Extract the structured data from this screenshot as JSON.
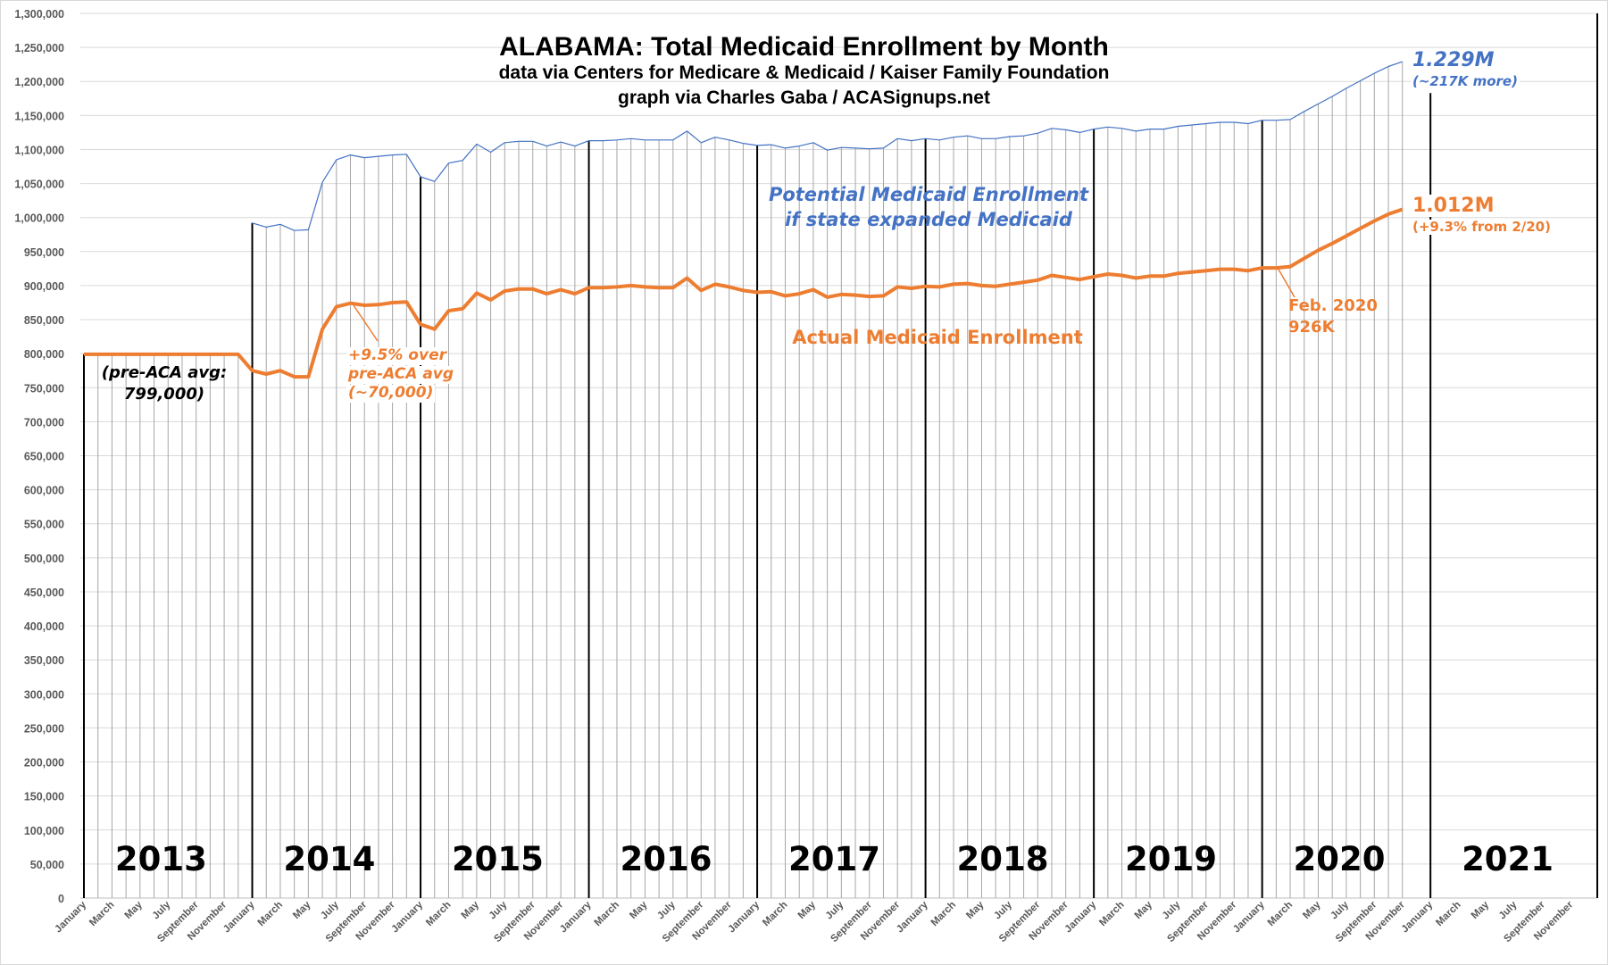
{
  "chart_data": {
    "type": "line",
    "title": "ALABAMA: Total Medicaid Enrollment by Month",
    "subtitle": [
      "data via Centers for Medicare & Medicaid / Kaiser Family Foundation",
      "graph via Charles Gaba / ACASignups.net"
    ],
    "xlabel": "",
    "ylabel": "",
    "x_start": "2013-01",
    "x_end": "2021-12",
    "ylim": [
      0,
      1300000
    ],
    "y_ticks": [
      0,
      50000,
      100000,
      150000,
      200000,
      250000,
      300000,
      350000,
      400000,
      450000,
      500000,
      550000,
      600000,
      650000,
      700000,
      750000,
      800000,
      850000,
      900000,
      950000,
      1000000,
      1050000,
      1100000,
      1150000,
      1200000,
      1250000,
      1300000
    ],
    "y_tick_labels": [
      "0",
      "50,000",
      "100,000",
      "150,000",
      "200,000",
      "250,000",
      "300,000",
      "350,000",
      "400,000",
      "450,000",
      "500,000",
      "550,000",
      "600,000",
      "650,000",
      "700,000",
      "750,000",
      "800,000",
      "850,000",
      "900,000",
      "950,000",
      "1,000,000",
      "1,050,000",
      "1,100,000",
      "1,150,000",
      "1,200,000",
      "1,250,000",
      "1,300,000"
    ],
    "x_tick_month_labels": [
      "January",
      "March",
      "May",
      "July",
      "September",
      "November"
    ],
    "year_labels": [
      "2013",
      "2014",
      "2015",
      "2016",
      "2017",
      "2018",
      "2019",
      "2020",
      "2021"
    ],
    "grid": true,
    "series": [
      {
        "key": "actual",
        "color": "#ed7d31",
        "values": [
          799000,
          799000,
          799000,
          799000,
          799000,
          799000,
          799000,
          799000,
          799000,
          799000,
          799000,
          799000,
          775000,
          770000,
          775000,
          766000,
          766000,
          836000,
          869000,
          874000,
          871000,
          872000,
          875000,
          876000,
          843000,
          836000,
          863000,
          866000,
          889000,
          879000,
          892000,
          895000,
          895000,
          888000,
          894000,
          888000,
          897000,
          897000,
          898000,
          900000,
          898000,
          897000,
          897000,
          911000,
          893000,
          902000,
          898000,
          893000,
          890000,
          891000,
          885000,
          888000,
          894000,
          883000,
          887000,
          886000,
          884000,
          885000,
          898000,
          896000,
          899000,
          898000,
          902000,
          903000,
          900000,
          899000,
          902000,
          905000,
          908000,
          915000,
          912000,
          909000,
          913000,
          917000,
          915000,
          911000,
          914000,
          914000,
          918000,
          920000,
          922000,
          924000,
          924000,
          922000,
          926000,
          926000,
          928000,
          940000,
          952000,
          962000,
          973000,
          984000,
          995000,
          1005000,
          1012000
        ]
      },
      {
        "key": "potential",
        "color": "#4472c4",
        "values": [
          null,
          null,
          null,
          null,
          null,
          null,
          null,
          null,
          null,
          null,
          null,
          null,
          992000,
          986000,
          990000,
          981000,
          982000,
          1052000,
          1085000,
          1092000,
          1088000,
          1090000,
          1092000,
          1093000,
          1060000,
          1053000,
          1080000,
          1084000,
          1108000,
          1096000,
          1110000,
          1112000,
          1112000,
          1105000,
          1111000,
          1105000,
          1113000,
          1113000,
          1114000,
          1116000,
          1114000,
          1114000,
          1114000,
          1127000,
          1110000,
          1118000,
          1114000,
          1109000,
          1106000,
          1107000,
          1102000,
          1105000,
          1110000,
          1099000,
          1103000,
          1102000,
          1101000,
          1102000,
          1116000,
          1113000,
          1116000,
          1114000,
          1118000,
          1120000,
          1116000,
          1116000,
          1119000,
          1120000,
          1124000,
          1131000,
          1129000,
          1125000,
          1130000,
          1133000,
          1131000,
          1127000,
          1130000,
          1130000,
          1134000,
          1136000,
          1138000,
          1140000,
          1140000,
          1138000,
          1143000,
          1143000,
          1144000,
          1156000,
          1167000,
          1178000,
          1190000,
          1201000,
          1212000,
          1222000,
          1229000
        ]
      }
    ],
    "annotations": {
      "potential_label": [
        "Potential Medicaid Enrollment",
        "if state expanded Medicaid"
      ],
      "actual_label": "Actual Medicaid Enrollment",
      "potential_end": "1.229M",
      "potential_end_sub": "(~217K more)",
      "actual_end": "1.012M",
      "actual_end_sub": "(+9.3% from 2/20)",
      "feb2020": [
        "Feb. 2020",
        "926K"
      ],
      "pre_aca": [
        "(pre-ACA avg:",
        "799,000)"
      ],
      "increase_2014": [
        "+9.5% over",
        "pre-ACA avg",
        "(~70,000)"
      ]
    }
  }
}
